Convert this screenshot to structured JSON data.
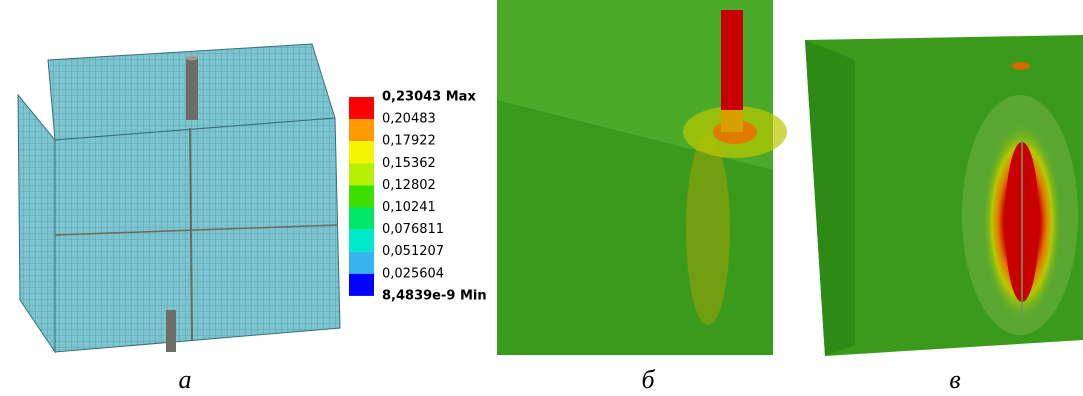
{
  "legend": {
    "entries": [
      {
        "label": "0,23043 Max",
        "bold": true
      },
      {
        "label": "0,20483"
      },
      {
        "label": "0,17922"
      },
      {
        "label": "0,15362"
      },
      {
        "label": "0,12802"
      },
      {
        "label": "0,10241"
      },
      {
        "label": "0,076811"
      },
      {
        "label": "0,051207"
      },
      {
        "label": "0,025604"
      },
      {
        "label": "8,4839e-9 Min",
        "bold": true
      }
    ],
    "colors": [
      "#ff0000",
      "#ff9a00",
      "#f4f400",
      "#b4f000",
      "#3ce000",
      "#00e86a",
      "#00e8c8",
      "#36b4f0",
      "#0000ff"
    ]
  },
  "panels": [
    {
      "label": "а"
    },
    {
      "label": "б"
    },
    {
      "label": "в"
    }
  ]
}
